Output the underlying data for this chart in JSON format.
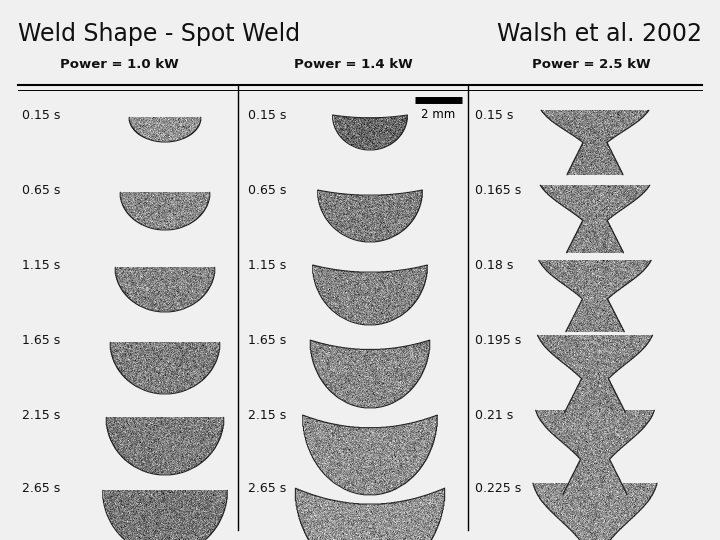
{
  "title_left": "Weld Shape - Spot Weld",
  "title_right": "Walsh et al. 2002",
  "col_headers": [
    "Power = 1.0 kW",
    "Power = 1.4 kW",
    "Power = 2.5 kW"
  ],
  "col1_times": [
    "0.15 s",
    "0.65 s",
    "1.15 s",
    "1.65 s",
    "2.15 s",
    "2.65 s"
  ],
  "col2_times": [
    "0.15 s",
    "0.65 s",
    "1.15 s",
    "1.65 s",
    "2.15 s",
    "2.65 s"
  ],
  "col3_times": [
    "0.15 s",
    "0.165 s",
    "0.18 s",
    "0.195 s",
    "0.21 s",
    "0.225 s"
  ],
  "scale_bar_label": "2 mm",
  "bg_color": "#f0f0f0",
  "text_color": "#111111"
}
